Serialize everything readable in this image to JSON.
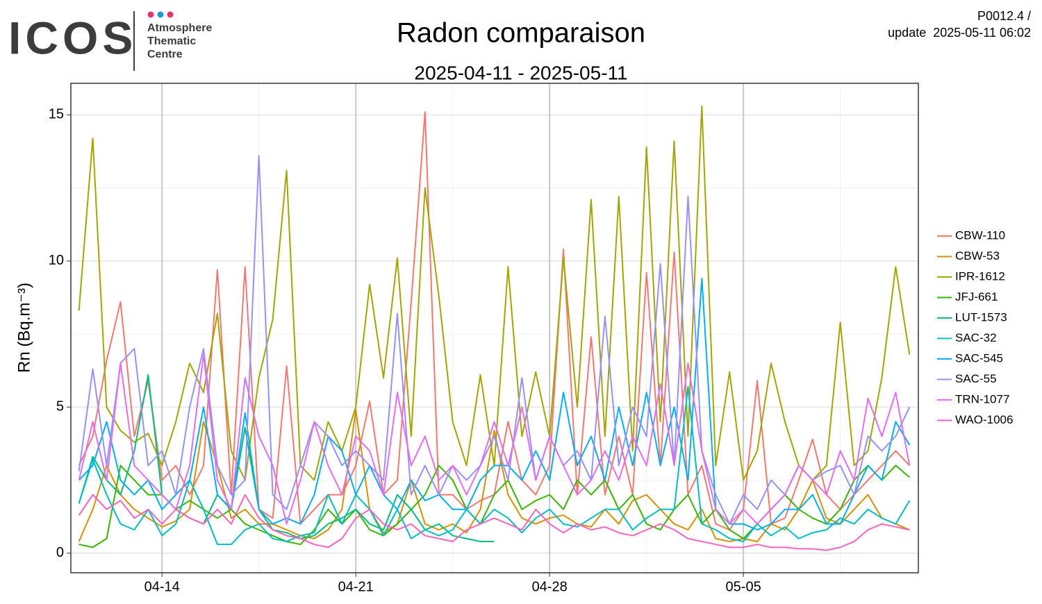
{
  "header": {
    "logo": "ICOS",
    "logo_lines": [
      "Atmosphere",
      "Thematic",
      "Centre"
    ],
    "product": "P0012.4 /",
    "update": "update  2025-05-11 06:02"
  },
  "chart_data": {
    "type": "line",
    "title": "Radon comparaison",
    "subtitle": "2025-04-11 - 2025-05-11",
    "ylabel": "Rn (Bq.m⁻³)",
    "x": [
      "2025-04-11 00:00",
      "2025-04-11 12:00",
      "2025-04-12 00:00",
      "2025-04-12 12:00",
      "2025-04-13 00:00",
      "2025-04-13 12:00",
      "2025-04-14 00:00",
      "2025-04-14 12:00",
      "2025-04-15 00:00",
      "2025-04-15 12:00",
      "2025-04-16 00:00",
      "2025-04-16 12:00",
      "2025-04-17 00:00",
      "2025-04-17 12:00",
      "2025-04-18 00:00",
      "2025-04-18 12:00",
      "2025-04-19 00:00",
      "2025-04-19 12:00",
      "2025-04-20 00:00",
      "2025-04-20 12:00",
      "2025-04-21 00:00",
      "2025-04-21 12:00",
      "2025-04-22 00:00",
      "2025-04-22 12:00",
      "2025-04-23 00:00",
      "2025-04-23 12:00",
      "2025-04-24 00:00",
      "2025-04-24 12:00",
      "2025-04-25 00:00",
      "2025-04-25 12:00",
      "2025-04-26 00:00",
      "2025-04-26 12:00",
      "2025-04-27 00:00",
      "2025-04-27 12:00",
      "2025-04-28 00:00",
      "2025-04-28 12:00",
      "2025-04-29 00:00",
      "2025-04-29 12:00",
      "2025-04-30 00:00",
      "2025-04-30 12:00",
      "2025-05-01 00:00",
      "2025-05-01 12:00",
      "2025-05-02 00:00",
      "2025-05-02 12:00",
      "2025-05-03 00:00",
      "2025-05-03 12:00",
      "2025-05-04 00:00",
      "2025-05-04 12:00",
      "2025-05-05 00:00",
      "2025-05-05 12:00",
      "2025-05-06 00:00",
      "2025-05-06 12:00",
      "2025-05-07 00:00",
      "2025-05-07 12:00",
      "2025-05-08 00:00",
      "2025-05-08 12:00",
      "2025-05-09 00:00",
      "2025-05-09 12:00",
      "2025-05-10 00:00",
      "2025-05-10 12:00",
      "2025-05-11 00:00"
    ],
    "series": [
      {
        "name": "CBW-110",
        "color": "#F8766D",
        "values": [
          3,
          4,
          6.6,
          8.6,
          4,
          5.9,
          2.5,
          3,
          2,
          3,
          9.7,
          2,
          9.8,
          1.5,
          1.2,
          6.4,
          1,
          1.5,
          2,
          2,
          3,
          5.2,
          2,
          2.5,
          8.6,
          15.1,
          2,
          2,
          1.5,
          1.8,
          2,
          4.5,
          2.5,
          2,
          3,
          10.4,
          2,
          7.4,
          2,
          4,
          2,
          9.6,
          3,
          10.3,
          2,
          3,
          1,
          0.8,
          1.5,
          5.9,
          1,
          1.2,
          2.5,
          3.9,
          2,
          1.5,
          2,
          2.5,
          3,
          3.5,
          3
        ]
      },
      {
        "name": "CBW-53",
        "color": "#D89000",
        "values": [
          0.4,
          1.5,
          3,
          2,
          1.5,
          1.2,
          0.9,
          1.1,
          1.5,
          4.5,
          3,
          1.2,
          1.5,
          1,
          1,
          0.8,
          0.6,
          0.5,
          0.8,
          1.5,
          4.9,
          1.5,
          0.7,
          1,
          2.5,
          1,
          0.8,
          1,
          0.7,
          1.5,
          4.2,
          2,
          1.2,
          1,
          1.2,
          1.3,
          1,
          0.9,
          1.5,
          1,
          1.8,
          2,
          1.5,
          1,
          0.8,
          1.5,
          0.5,
          0.4,
          0.5,
          0.4,
          1,
          0.8,
          1.5,
          2.5,
          1.2,
          1,
          1.5,
          2,
          1.2,
          1,
          0.8
        ]
      },
      {
        "name": "IPR-1612",
        "color": "#A3A500",
        "values": [
          8.3,
          14.2,
          5,
          4.2,
          3.8,
          4.1,
          3,
          4.5,
          6.5,
          5.5,
          8.2,
          3.5,
          2.5,
          6,
          8,
          13.1,
          3,
          2.5,
          4.5,
          3.5,
          5,
          9.2,
          6,
          10.1,
          4,
          12.5,
          8.8,
          4.5,
          3,
          6.1,
          3,
          9.8,
          4,
          6.2,
          4,
          10.1,
          5,
          12.1,
          4,
          12.2,
          3.5,
          13.9,
          4.5,
          14.1,
          4,
          15.3,
          3,
          6.2,
          2.5,
          3.5,
          6.5,
          4.5,
          3,
          2.5,
          3,
          7.9,
          3,
          3.5,
          6,
          9.8,
          6.8
        ]
      },
      {
        "name": "JFJ-661",
        "color": "#39B600",
        "values": [
          0.3,
          0.2,
          0.5,
          3,
          2.5,
          2,
          2,
          1.5,
          1.8,
          1.5,
          1.2,
          1.5,
          1,
          0.8,
          0.6,
          0.4,
          0.3,
          0.8,
          1.5,
          1,
          1.5,
          0.8,
          0.6,
          1,
          1.5,
          2,
          3,
          2.5,
          1.5,
          1,
          2,
          2.5,
          1.5,
          1.8,
          2,
          1.5,
          2.5,
          2,
          2.5,
          1.5,
          2,
          1,
          0.8,
          1.5,
          2,
          1,
          1.5,
          0.8,
          0.5,
          1,
          1.5,
          2,
          1.5,
          1.2,
          1,
          1.5,
          2.5,
          3,
          2.5,
          3,
          2.6
        ]
      },
      {
        "name": "LUT-1573",
        "color": "#00BF7D",
        "values": [
          1.7,
          3.3,
          2.5,
          2,
          3.5,
          6.1,
          2,
          1.5,
          1.2,
          1,
          2,
          1.5,
          4.3,
          1.5,
          0.8,
          0.7,
          0.5,
          0.6,
          1,
          1.2,
          1.5,
          1,
          0.8,
          2,
          1.5,
          0.8,
          1,
          0.6,
          0.5,
          0.4,
          0.4,
          null,
          null,
          null,
          null,
          null,
          null,
          null,
          null,
          null,
          null,
          null,
          null,
          null,
          null,
          null,
          null,
          null,
          null,
          null,
          null,
          null,
          null,
          null,
          null,
          null,
          null,
          null,
          null,
          null,
          null
        ]
      },
      {
        "name": "SAC-32",
        "color": "#00BFC4",
        "values": [
          1.7,
          3.2,
          2,
          1,
          0.8,
          1.5,
          0.6,
          1,
          2.5,
          1.5,
          0.3,
          0.3,
          0.8,
          1,
          0.5,
          0.4,
          0.6,
          0.7,
          2,
          1,
          2,
          1.5,
          0.6,
          1.5,
          0.5,
          0.8,
          0.6,
          0.8,
          1.5,
          1,
          1.5,
          1.2,
          0.7,
          1.2,
          1.5,
          1,
          0.9,
          1.2,
          1.5,
          1.5,
          0.8,
          1.2,
          1.5,
          1.5,
          5.7,
          1,
          0.8,
          0.5,
          0.4,
          1,
          0.6,
          0.9,
          0.5,
          0.7,
          0.8,
          1.2,
          1,
          1.5,
          1.2,
          1,
          1.8
        ]
      },
      {
        "name": "SAC-545",
        "color": "#00B0F6",
        "values": [
          2.5,
          3,
          4.5,
          2.5,
          2,
          2.5,
          1.5,
          2,
          2.5,
          5,
          2,
          1.5,
          4.8,
          1.5,
          1,
          1.2,
          1,
          2,
          4,
          3.5,
          2,
          3,
          2,
          1.5,
          2.5,
          1.8,
          2,
          1.5,
          1.5,
          2.5,
          3,
          3,
          2.5,
          3.5,
          2.5,
          5.5,
          3,
          4,
          2.5,
          5,
          3,
          5.5,
          3,
          5,
          2.5,
          9.4,
          1.5,
          1,
          1,
          0.8,
          1,
          1.5,
          1.5,
          2,
          1,
          1,
          2,
          3,
          2.5,
          4.5,
          3.7
        ]
      },
      {
        "name": "SAC-55",
        "color": "#9590FF",
        "values": [
          2.8,
          6.3,
          3,
          6.5,
          7,
          3,
          3.5,
          2,
          5,
          7,
          3,
          2,
          2.5,
          13.6,
          2,
          1.5,
          3,
          4.5,
          4,
          3,
          3.5,
          3,
          2.5,
          8.2,
          2,
          3,
          2,
          3,
          2.5,
          3,
          4,
          2.5,
          6,
          2.5,
          4,
          3,
          3.5,
          2.5,
          8.1,
          3,
          5,
          4,
          9.9,
          3,
          12.2,
          3.5,
          2,
          1,
          2,
          1.5,
          2.5,
          2,
          3,
          2.5,
          2.8,
          3,
          2,
          4,
          3.5,
          4,
          5
        ]
      },
      {
        "name": "TRN-1077",
        "color": "#E76BF3",
        "values": [
          2.5,
          4.5,
          2.5,
          6.5,
          3,
          2.5,
          2,
          1.5,
          3,
          6.8,
          2.5,
          1.5,
          6,
          4,
          3,
          1,
          2.5,
          4.5,
          3,
          2,
          4,
          3.5,
          2,
          5.5,
          3,
          4,
          2.5,
          3,
          2,
          3,
          4.5,
          3,
          5,
          2.5,
          4,
          3,
          2,
          2.5,
          3.5,
          2.5,
          4,
          3,
          5.8,
          3,
          6.5,
          3.5,
          1.5,
          1,
          1.5,
          1,
          1.5,
          2,
          3,
          2.5,
          2,
          3.5,
          2.5,
          5.3,
          4,
          5.5,
          3
        ]
      },
      {
        "name": "WAO-1006",
        "color": "#FF62BC",
        "values": [
          1.3,
          2,
          1.5,
          1.8,
          1.2,
          1.5,
          1,
          1.5,
          1.2,
          1,
          1.5,
          1,
          2,
          1.2,
          0.8,
          0.6,
          0.5,
          0.3,
          0.2,
          0.5,
          1.2,
          1.5,
          1,
          0.8,
          1,
          0.6,
          0.5,
          0.4,
          0.8,
          1,
          1.2,
          1,
          0.8,
          1.5,
          1,
          0.7,
          1,
          0.8,
          0.9,
          0.7,
          0.6,
          0.8,
          1,
          0.8,
          0.5,
          0.4,
          0.3,
          0.2,
          0.2,
          0.3,
          0.2,
          0.2,
          0.15,
          0.15,
          0.1,
          0.2,
          0.4,
          0.8,
          1,
          0.9,
          0.8
        ]
      }
    ],
    "xlim": [
      "2025-04-10 17:00",
      "2025-05-11 07:40"
    ],
    "xticks": [
      {
        "value": "2025-04-14 00:00",
        "label": "04-14"
      },
      {
        "value": "2025-04-21 00:00",
        "label": "04-21"
      },
      {
        "value": "2025-04-28 00:00",
        "label": "04-28"
      },
      {
        "value": "2025-05-05 00:00",
        "label": "05-05"
      }
    ],
    "xminorticks": [
      "2025-04-17 12:00",
      "2025-04-24 12:00",
      "2025-05-01 12:00",
      "2025-05-08 12:00"
    ],
    "ylim": [
      -0.67,
      16.08
    ],
    "yticks": [
      0,
      5,
      10,
      15
    ],
    "yminorticks": [
      2.5,
      7.5,
      12.5
    ],
    "grid": true,
    "legend": "right"
  }
}
